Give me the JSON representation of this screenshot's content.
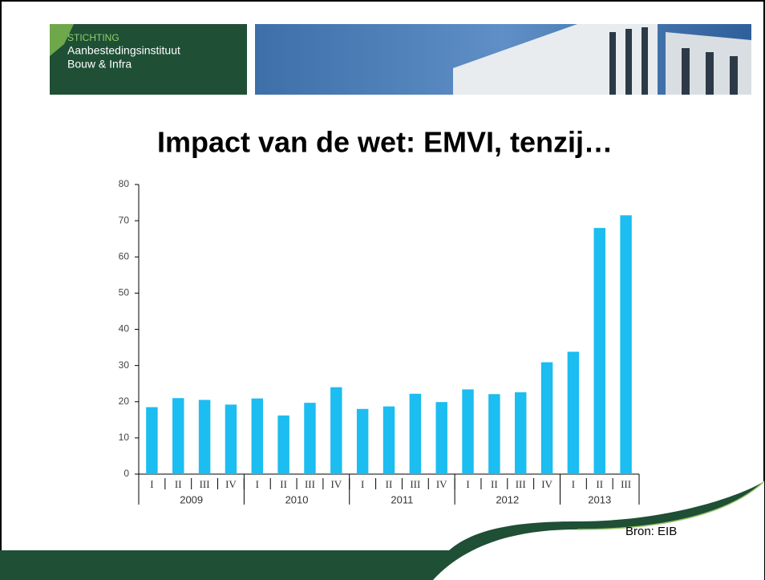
{
  "header": {
    "org_line1": "STICHTING",
    "org_line2": "Aanbestedingsinstituut",
    "org_line3": "Bouw & Infra"
  },
  "chart_data": {
    "type": "bar",
    "title": "Impact van de wet: EMVI, tenzij…",
    "categories": [
      "I",
      "II",
      "III",
      "IV",
      "I",
      "II",
      "III",
      "IV",
      "I",
      "II",
      "III",
      "IV",
      "I",
      "II",
      "III",
      "IV",
      "I",
      "II",
      "III"
    ],
    "groups": [
      {
        "label": "2009",
        "size": 4
      },
      {
        "label": "2010",
        "size": 4
      },
      {
        "label": "2011",
        "size": 4
      },
      {
        "label": "2012",
        "size": 4
      },
      {
        "label": "2013",
        "size": 3
      }
    ],
    "values": [
      18.5,
      21,
      20.5,
      19.2,
      20.9,
      16.2,
      19.7,
      24,
      18,
      18.7,
      22.2,
      19.9,
      23.4,
      22.1,
      22.6,
      30.9,
      33.8,
      68,
      71.5
    ],
    "color": "#1cbdf0",
    "ylim": [
      0,
      80
    ],
    "yticks": [
      0,
      10,
      20,
      30,
      40,
      50,
      60,
      70,
      80
    ],
    "grid": false
  },
  "footer": {
    "source": "Bron: EIB"
  }
}
